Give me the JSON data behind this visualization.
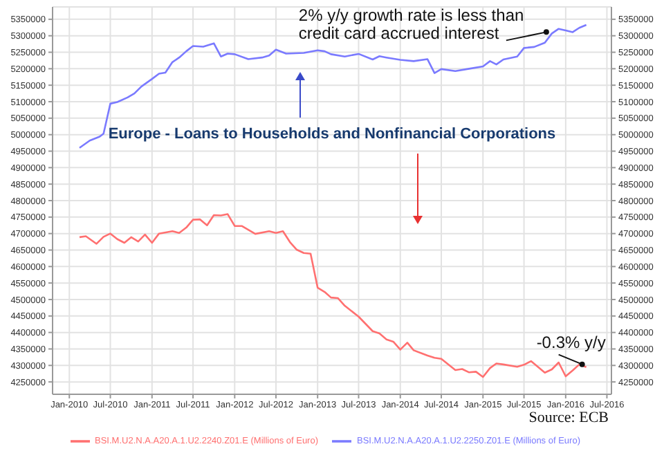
{
  "chart_data": {
    "type": "line",
    "title": "Europe - Loans to Households and Nonfinancial Corporations",
    "xlim": [
      "2009-10-19",
      "2016-07-21"
    ],
    "xticks": [
      {
        "value": "2010-01",
        "label": "Jan-2010"
      },
      {
        "value": "2010-07",
        "label": "Jul-2010"
      },
      {
        "value": "2011-01",
        "label": "Jan-2011"
      },
      {
        "value": "2011-07",
        "label": "Jul-2011"
      },
      {
        "value": "2012-01",
        "label": "Jan-2012"
      },
      {
        "value": "2012-07",
        "label": "Jul-2012"
      },
      {
        "value": "2013-01",
        "label": "Jan-2013"
      },
      {
        "value": "2013-07",
        "label": "Jul-2013"
      },
      {
        "value": "2014-01",
        "label": "Jan-2014"
      },
      {
        "value": "2014-07",
        "label": "Jul-2014"
      },
      {
        "value": "2015-01",
        "label": "Jan-2015"
      },
      {
        "value": "2015-07",
        "label": "Jul-2015"
      },
      {
        "value": "2016-01",
        "label": "Jan-2016"
      },
      {
        "value": "2016-07",
        "label": "Jul-2016"
      }
    ],
    "ylim": [
      4212500,
      5387500
    ],
    "yticks": [
      4250000,
      4300000,
      4350000,
      4400000,
      4450000,
      4500000,
      4550000,
      4600000,
      4650000,
      4700000,
      4750000,
      4800000,
      4850000,
      4900000,
      4950000,
      5000000,
      5050000,
      5100000,
      5150000,
      5200000,
      5250000,
      5300000,
      5350000
    ],
    "y2lim": [
      4212500,
      5387500
    ],
    "y2ticks": [
      4250000,
      4300000,
      4350000,
      4400000,
      4450000,
      4500000,
      4550000,
      4600000,
      4650000,
      4700000,
      4750000,
      4800000,
      4850000,
      4900000,
      4950000,
      5000000,
      5050000,
      5100000,
      5150000,
      5200000,
      5250000,
      5300000,
      5350000
    ],
    "grid": true,
    "legend": "bottom",
    "marker": "none",
    "line_style": "solid",
    "series": [
      {
        "name": "BSI.M.U2.N.A.A20.A.1.U2.2240.Z01.E (Millions of Euro)",
        "color": "#ff7070",
        "x": [
          "2010-02-15",
          "2010-03-15",
          "2010-05-01",
          "2010-06-01",
          "2010-07-01",
          "2010-08-01",
          "2010-09-01",
          "2010-10-01",
          "2010-11-01",
          "2010-12-01",
          "2011-01-01",
          "2011-02-01",
          "2011-04-01",
          "2011-05-01",
          "2011-06-01",
          "2011-07-01",
          "2011-08-01",
          "2011-09-01",
          "2011-10-01",
          "2011-11-01",
          "2011-12-01",
          "2012-01-01",
          "2012-02-01",
          "2012-04-01",
          "2012-06-01",
          "2012-07-01",
          "2012-08-01",
          "2012-09-01",
          "2012-10-01",
          "2012-11-01",
          "2012-12-01",
          "2013-01-01",
          "2013-02-01",
          "2013-03-01",
          "2013-04-01",
          "2013-05-01",
          "2013-07-01",
          "2013-09-01",
          "2013-10-01",
          "2013-11-01",
          "2013-12-01",
          "2014-01-01",
          "2014-02-01",
          "2014-03-01",
          "2014-05-01",
          "2014-06-01",
          "2014-07-01",
          "2014-09-01",
          "2014-10-01",
          "2014-11-01",
          "2014-12-01",
          "2015-01-01",
          "2015-02-01",
          "2015-03-01",
          "2015-04-01",
          "2015-06-01",
          "2015-07-01",
          "2015-08-01",
          "2015-10-01",
          "2015-11-01",
          "2015-12-01",
          "2016-01-01",
          "2016-02-01",
          "2016-03-01",
          "2016-04-01"
        ],
        "values": [
          4689000,
          4692000,
          4669000,
          4690000,
          4700000,
          4683000,
          4672000,
          4689000,
          4676000,
          4697000,
          4672000,
          4700000,
          4707000,
          4702000,
          4718000,
          4742000,
          4743000,
          4725000,
          4756000,
          4755000,
          4759000,
          4723000,
          4723000,
          4699000,
          4707000,
          4702000,
          4707000,
          4674000,
          4651000,
          4641000,
          4639000,
          4536000,
          4523000,
          4506000,
          4504000,
          4481000,
          4448000,
          4404000,
          4397000,
          4379000,
          4372000,
          4348000,
          4369000,
          4346000,
          4330000,
          4323000,
          4320000,
          4286000,
          4289000,
          4279000,
          4281000,
          4265000,
          4292000,
          4306000,
          4303000,
          4296000,
          4302000,
          4313000,
          4278000,
          4288000,
          4309000,
          4267000,
          4285000,
          4303000,
          4295000
        ]
      },
      {
        "name": "BSI.M.U2.N.A.A20.A.1.U2.2250.Z01.E (Millions of Euro)",
        "color": "#7a7aff",
        "x": [
          "2010-02-15",
          "2010-04-01",
          "2010-05-15",
          "2010-06-01",
          "2010-07-01",
          "2010-08-01",
          "2010-09-15",
          "2010-10-15",
          "2010-11-15",
          "2011-01-01",
          "2011-02-01",
          "2011-03-01",
          "2011-04-01",
          "2011-05-01",
          "2011-06-01",
          "2011-07-01",
          "2011-08-15",
          "2011-10-01",
          "2011-11-01",
          "2011-12-01",
          "2012-01-01",
          "2012-03-01",
          "2012-05-01",
          "2012-06-01",
          "2012-07-01",
          "2012-08-15",
          "2012-11-01",
          "2013-01-01",
          "2013-02-01",
          "2013-03-01",
          "2013-05-01",
          "2013-07-01",
          "2013-09-01",
          "2013-10-01",
          "2013-11-01",
          "2014-01-01",
          "2014-03-01",
          "2014-05-01",
          "2014-06-01",
          "2014-07-01",
          "2014-09-01",
          "2014-11-01",
          "2015-01-01",
          "2015-02-01",
          "2015-03-01",
          "2015-04-01",
          "2015-06-01",
          "2015-07-01",
          "2015-08-15",
          "2015-10-01",
          "2015-11-01",
          "2015-12-01",
          "2016-01-01",
          "2016-02-01",
          "2016-03-01",
          "2016-04-01"
        ],
        "values": [
          4960000,
          4982000,
          4994000,
          5003000,
          5094000,
          5099000,
          5113000,
          5125000,
          5146000,
          5169000,
          5185000,
          5188000,
          5220000,
          5234000,
          5253000,
          5269000,
          5267000,
          5277000,
          5237000,
          5246000,
          5244000,
          5229000,
          5234000,
          5240000,
          5258000,
          5246000,
          5248000,
          5256000,
          5253000,
          5244000,
          5237000,
          5245000,
          5228000,
          5238000,
          5234000,
          5227000,
          5223000,
          5229000,
          5187000,
          5199000,
          5193000,
          5200000,
          5207000,
          5223000,
          5213000,
          5228000,
          5237000,
          5263000,
          5266000,
          5279000,
          5307000,
          5321000,
          5316000,
          5311000,
          5324000,
          5333000
        ]
      }
    ],
    "annotations": [
      {
        "text": "2% y/y growth rate is less than credit card accrued interest",
        "x": "2015-11-01",
        "y": 5307000
      },
      {
        "text": "-0.3% y/y",
        "x": "2016-04-01",
        "y": 4295000
      },
      "Source: ECB"
    ]
  }
}
